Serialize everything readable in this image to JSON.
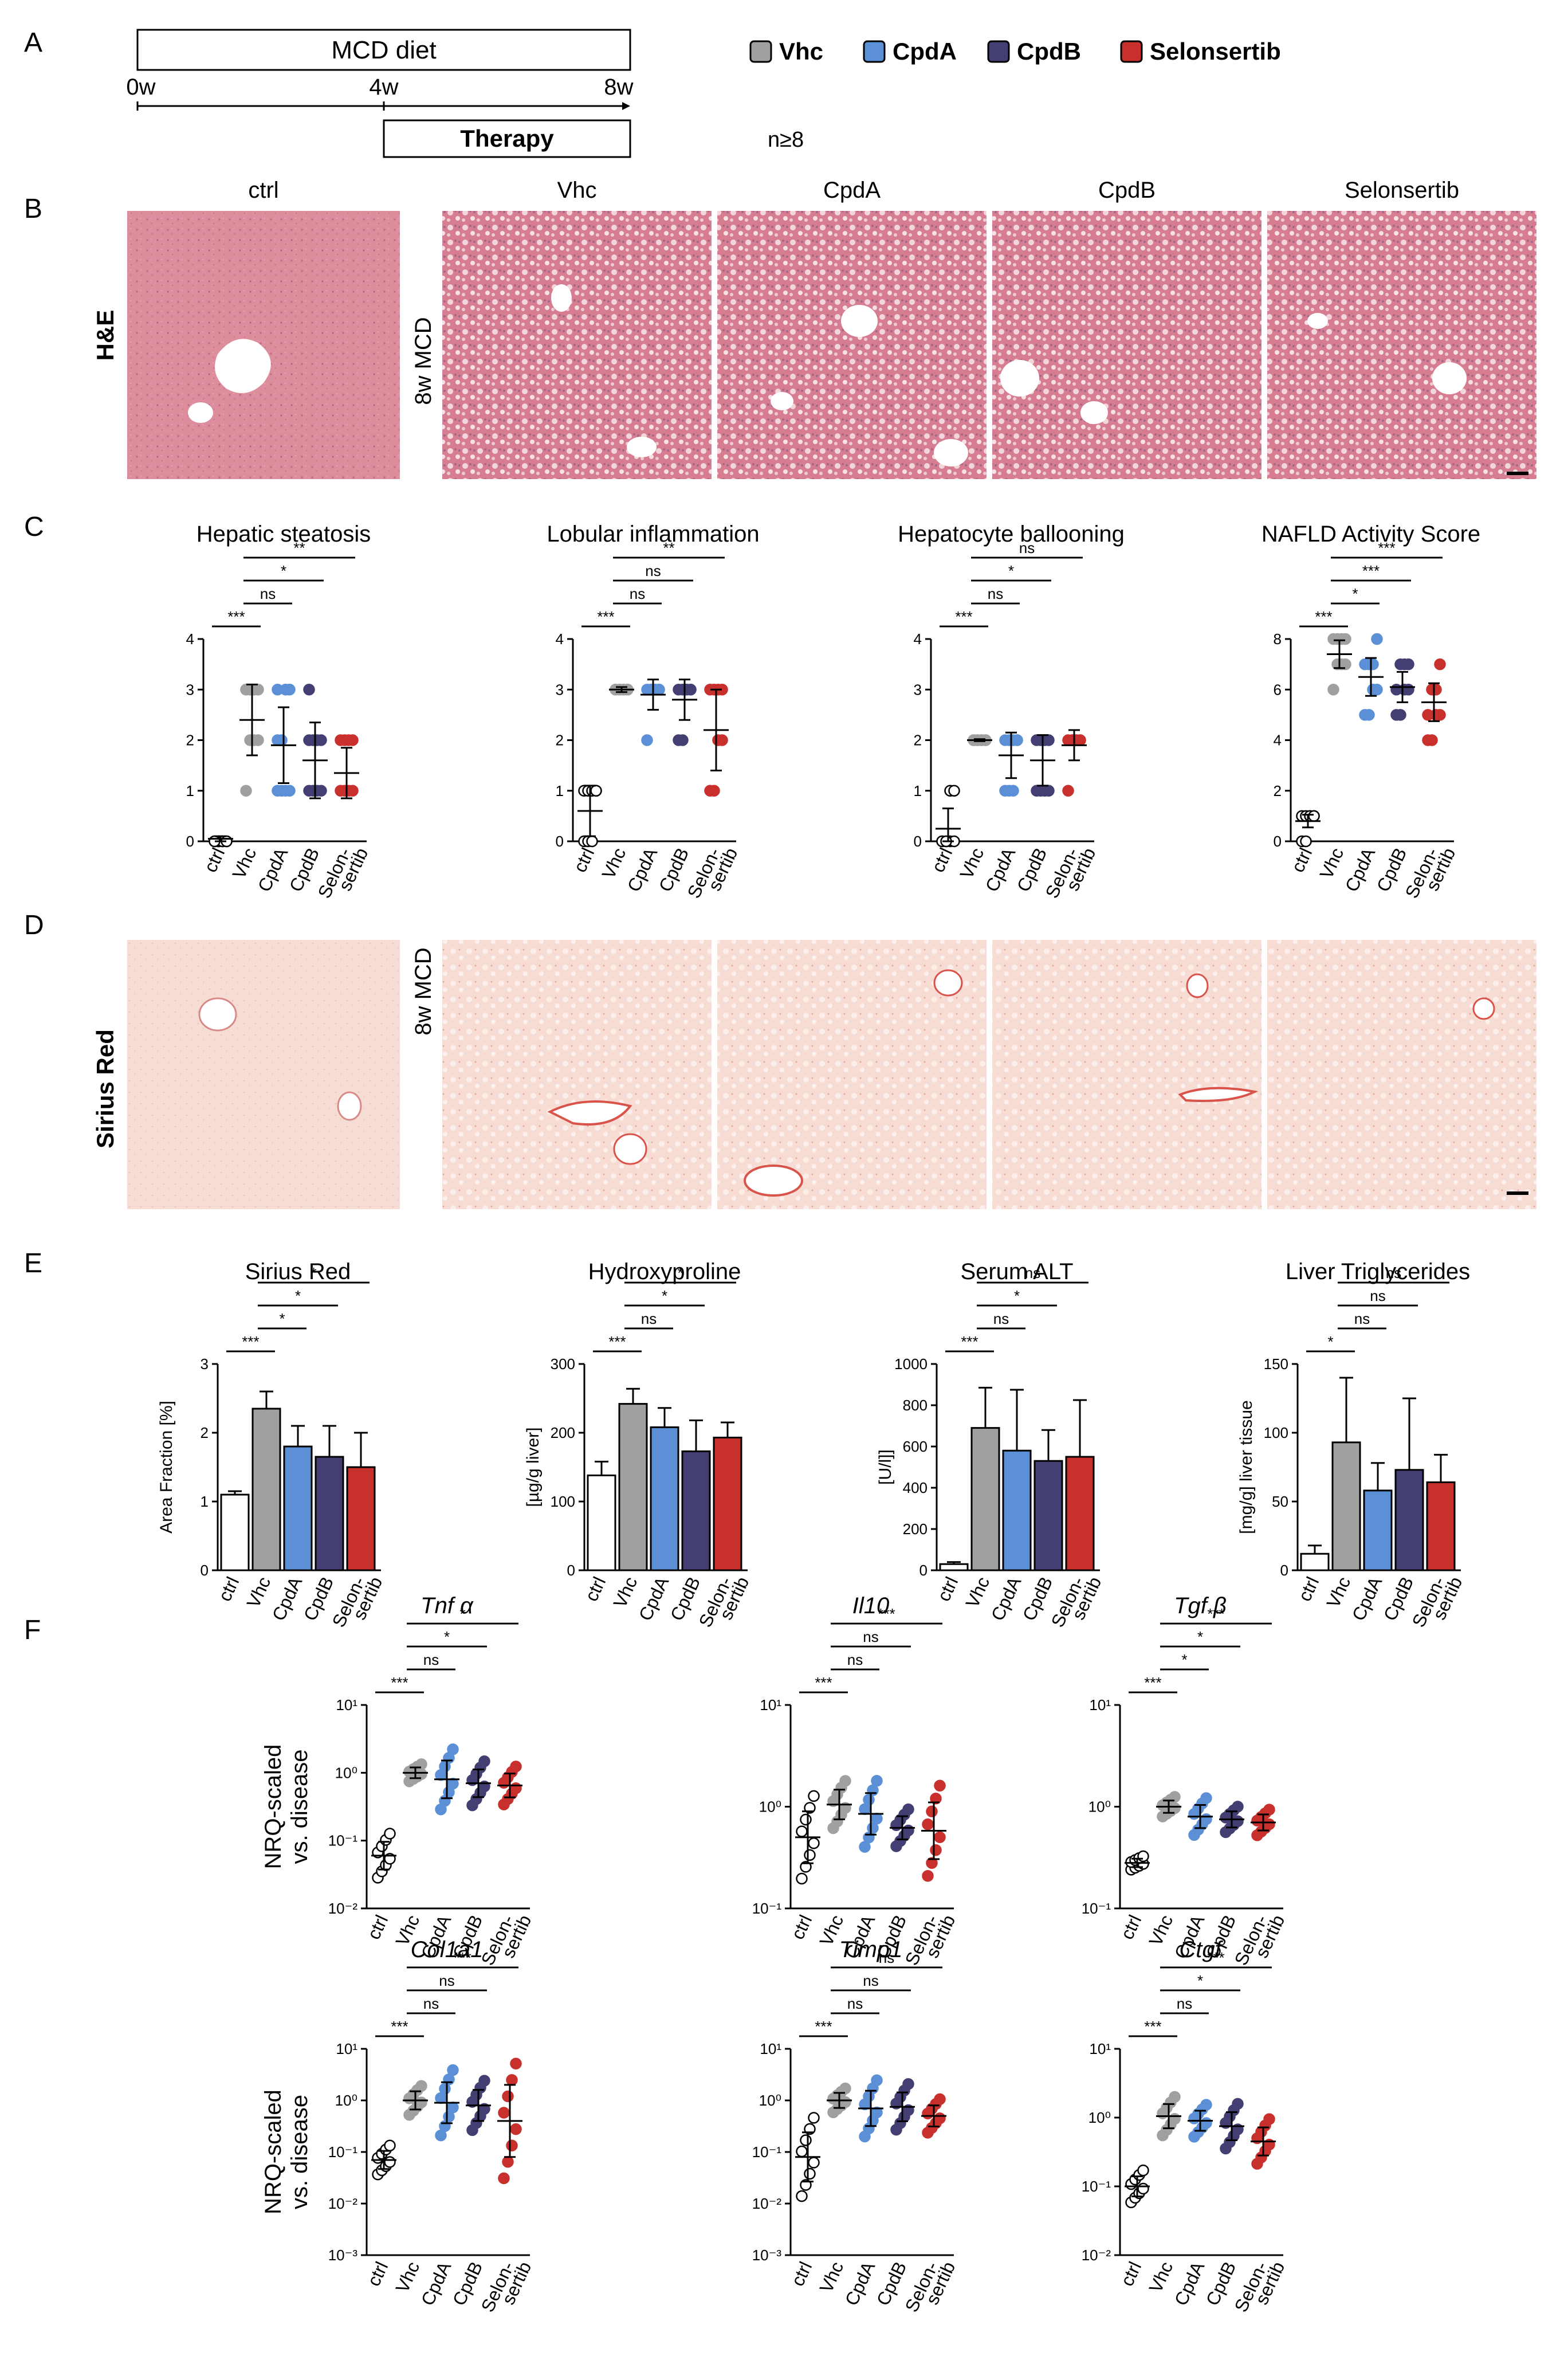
{
  "panels": {
    "A": "A",
    "B": "B",
    "C": "C",
    "D": "D",
    "E": "E",
    "F": "F"
  },
  "colors": {
    "Vhc": "#a0a0a0",
    "CpdA": "#5b8fd6",
    "CpdB": "#433f73",
    "Selonsertib": "#c8302d",
    "ctrl": "#ffffff"
  },
  "panelA": {
    "diet": "MCD diet",
    "weeks": [
      "0w",
      "4w",
      "8w"
    ],
    "therapy": "Therapy",
    "n_note": "n≥8",
    "legend": [
      "Vhc",
      "CpdA",
      "CpdB",
      "Selonsertib"
    ]
  },
  "panelB": {
    "stain": "H&E",
    "side_label": "8w MCD",
    "image_titles": [
      "ctrl",
      "Vhc",
      "CpdA",
      "CpdB",
      "Selonsertib"
    ]
  },
  "panelD": {
    "stain": "Sirius Red",
    "side_label": "8w MCD"
  },
  "group_labels": [
    "ctrl",
    "Vhc",
    "CpdA",
    "CpdB",
    "Selon-\nsertib"
  ],
  "chart_data": [
    {
      "panel": "C",
      "type": "scatter",
      "title": "Hepatic steatosis",
      "categories": [
        "ctrl",
        "Vhc",
        "CpdA",
        "CpdB",
        "Selonsertib"
      ],
      "ylim": [
        0,
        4
      ],
      "yticks": [
        0,
        1,
        2,
        3,
        4
      ],
      "mean": [
        0.05,
        2.4,
        1.9,
        1.6,
        1.35
      ],
      "sd": [
        0.05,
        0.7,
        0.75,
        0.75,
        0.5
      ],
      "points": [
        [
          0,
          0,
          0,
          0,
          0,
          0,
          0,
          0,
          0
        ],
        [
          1,
          2,
          2,
          2,
          3,
          3,
          3,
          3,
          3
        ],
        [
          1,
          1,
          1,
          1,
          2,
          2,
          3,
          3,
          3
        ],
        [
          1,
          1,
          1,
          1,
          2,
          2,
          2,
          2,
          3
        ],
        [
          1,
          1,
          1,
          1,
          2,
          2,
          2,
          2
        ]
      ],
      "comparisons": [
        {
          "label": "***",
          "from": 0,
          "to": 1
        },
        {
          "label": "ns",
          "from": 1,
          "to": 2
        },
        {
          "label": "*",
          "from": 1,
          "to": 3
        },
        {
          "label": "**",
          "from": 1,
          "to": 4
        }
      ]
    },
    {
      "panel": "C",
      "type": "scatter",
      "title": "Lobular inflammation",
      "categories": [
        "ctrl",
        "Vhc",
        "CpdA",
        "CpdB",
        "Selonsertib"
      ],
      "ylim": [
        0,
        4
      ],
      "yticks": [
        0,
        1,
        2,
        3,
        4
      ],
      "mean": [
        0.6,
        3.0,
        2.9,
        2.8,
        2.2
      ],
      "sd": [
        0.5,
        0.05,
        0.3,
        0.4,
        0.8
      ],
      "points": [
        [
          0,
          0,
          0,
          1,
          1,
          1,
          1,
          1
        ],
        [
          3,
          3,
          3,
          3,
          3,
          3,
          3,
          3
        ],
        [
          2,
          3,
          3,
          3,
          3,
          3,
          3,
          3
        ],
        [
          2,
          2,
          3,
          3,
          3,
          3,
          3,
          3
        ],
        [
          1,
          1,
          2,
          2,
          3,
          3,
          3,
          3
        ]
      ],
      "comparisons": [
        {
          "label": "***",
          "from": 0,
          "to": 1
        },
        {
          "label": "ns",
          "from": 1,
          "to": 2
        },
        {
          "label": "ns",
          "from": 1,
          "to": 3
        },
        {
          "label": "**",
          "from": 1,
          "to": 4
        }
      ]
    },
    {
      "panel": "C",
      "type": "scatter",
      "title": "Hepatocyte ballooning",
      "categories": [
        "ctrl",
        "Vhc",
        "CpdA",
        "CpdB",
        "Selonsertib"
      ],
      "ylim": [
        0,
        4
      ],
      "yticks": [
        0,
        1,
        2,
        3,
        4
      ],
      "mean": [
        0.25,
        2.0,
        1.7,
        1.6,
        1.9
      ],
      "sd": [
        0.4,
        0.02,
        0.45,
        0.5,
        0.3
      ],
      "points": [
        [
          0,
          0,
          0,
          0,
          0,
          0,
          1,
          1
        ],
        [
          2,
          2,
          2,
          2,
          2,
          2,
          2,
          2
        ],
        [
          1,
          1,
          1,
          2,
          2,
          2,
          2,
          2
        ],
        [
          1,
          1,
          1,
          1,
          2,
          2,
          2,
          2
        ],
        [
          1,
          2,
          2,
          2,
          2,
          2,
          2,
          2
        ]
      ],
      "comparisons": [
        {
          "label": "***",
          "from": 0,
          "to": 1
        },
        {
          "label": "ns",
          "from": 1,
          "to": 2
        },
        {
          "label": "*",
          "from": 1,
          "to": 3
        },
        {
          "label": "ns",
          "from": 1,
          "to": 4
        }
      ]
    },
    {
      "panel": "C",
      "type": "scatter",
      "title": "NAFLD Activity Score",
      "categories": [
        "ctrl",
        "Vhc",
        "CpdA",
        "CpdB",
        "Selonsertib"
      ],
      "ylim": [
        0,
        8
      ],
      "yticks": [
        0,
        2,
        4,
        6,
        8
      ],
      "mean": [
        0.8,
        7.4,
        6.5,
        6.1,
        5.5
      ],
      "sd": [
        0.25,
        0.55,
        0.75,
        0.6,
        0.75
      ],
      "points": [
        [
          0,
          0,
          1,
          1,
          1,
          1,
          1,
          1
        ],
        [
          6,
          7,
          7,
          7,
          8,
          8,
          8,
          8
        ],
        [
          5,
          5,
          6,
          6,
          7,
          7,
          7,
          8
        ],
        [
          5,
          5,
          6,
          6,
          6,
          7,
          7,
          7
        ],
        [
          4,
          4,
          5,
          5,
          5,
          6,
          6,
          7
        ]
      ],
      "comparisons": [
        {
          "label": "***",
          "from": 0,
          "to": 1
        },
        {
          "label": "*",
          "from": 1,
          "to": 2
        },
        {
          "label": "***",
          "from": 1,
          "to": 3
        },
        {
          "label": "***",
          "from": 1,
          "to": 4
        }
      ]
    },
    {
      "panel": "E",
      "type": "bar",
      "title": "Sirius Red",
      "ylabel": "Area Fraction [%]",
      "categories": [
        "ctrl",
        "Vhc",
        "CpdA",
        "CpdB",
        "Selonsertib"
      ],
      "ylim": [
        0,
        3
      ],
      "yticks": [
        0,
        1,
        2,
        3
      ],
      "values": [
        1.1,
        2.35,
        1.8,
        1.65,
        1.5
      ],
      "errors": [
        0.05,
        0.25,
        0.3,
        0.45,
        0.5
      ],
      "comparisons": [
        {
          "label": "***",
          "from": 0,
          "to": 1
        },
        {
          "label": "*",
          "from": 1,
          "to": 2
        },
        {
          "label": "*",
          "from": 1,
          "to": 3
        },
        {
          "label": "*",
          "from": 1,
          "to": 4
        }
      ]
    },
    {
      "panel": "E",
      "type": "bar",
      "title": "Hydroxyproline",
      "ylabel": "[µg/g liver]",
      "categories": [
        "ctrl",
        "Vhc",
        "CpdA",
        "CpdB",
        "Selonsertib"
      ],
      "ylim": [
        0,
        300
      ],
      "yticks": [
        0,
        100,
        200,
        300
      ],
      "values": [
        138,
        242,
        208,
        173,
        193
      ],
      "errors": [
        20,
        22,
        28,
        45,
        22
      ],
      "comparisons": [
        {
          "label": "***",
          "from": 0,
          "to": 1
        },
        {
          "label": "ns",
          "from": 1,
          "to": 2
        },
        {
          "label": "*",
          "from": 1,
          "to": 3
        },
        {
          "label": "*",
          "from": 1,
          "to": 4
        }
      ]
    },
    {
      "panel": "E",
      "type": "bar",
      "title": "Serum ALT",
      "ylabel": "[U/l]]",
      "categories": [
        "ctrl",
        "Vhc",
        "CpdA",
        "CpdB",
        "Selonsertib"
      ],
      "ylim": [
        0,
        1000
      ],
      "yticks": [
        0,
        200,
        400,
        600,
        800,
        1000
      ],
      "values": [
        30,
        690,
        580,
        530,
        550
      ],
      "errors": [
        10,
        195,
        295,
        150,
        275
      ],
      "comparisons": [
        {
          "label": "***",
          "from": 0,
          "to": 1
        },
        {
          "label": "ns",
          "from": 1,
          "to": 2
        },
        {
          "label": "*",
          "from": 1,
          "to": 3
        },
        {
          "label": "ns",
          "from": 1,
          "to": 4
        }
      ]
    },
    {
      "panel": "E",
      "type": "bar",
      "title": "Liver Triglycerides",
      "ylabel": "[mg/g] liver tissue",
      "categories": [
        "ctrl",
        "Vhc",
        "CpdA",
        "CpdB",
        "Selonsertib"
      ],
      "ylim": [
        0,
        150
      ],
      "yticks": [
        0,
        50,
        100,
        150
      ],
      "values": [
        12,
        93,
        58,
        73,
        64
      ],
      "errors": [
        6,
        47,
        20,
        52,
        20
      ],
      "comparisons": [
        {
          "label": "*",
          "from": 0,
          "to": 1
        },
        {
          "label": "ns",
          "from": 1,
          "to": 2
        },
        {
          "label": "ns",
          "from": 1,
          "to": 3
        },
        {
          "label": "ns",
          "from": 1,
          "to": 4
        }
      ]
    },
    {
      "panel": "F",
      "type": "scatter",
      "title": "Tnf α",
      "ylabel": "NRQ-scaled\nvs. disease",
      "log": true,
      "ylim": [
        0.01,
        10
      ],
      "yticks": [
        "10⁻²",
        "10⁻¹",
        "10⁰",
        "10¹"
      ],
      "categories": [
        "ctrl",
        "Vhc",
        "CpdA",
        "CpdB",
        "Selonsertib"
      ],
      "mean": [
        0.06,
        1.0,
        0.8,
        0.7,
        0.65
      ],
      "sd_factor": [
        1.6,
        1.2,
        1.9,
        1.6,
        1.5
      ],
      "comparisons": [
        {
          "label": "***",
          "from": 0,
          "to": 1
        },
        {
          "label": "ns",
          "from": 1,
          "to": 2
        },
        {
          "label": "*",
          "from": 1,
          "to": 3
        },
        {
          "label": "*",
          "from": 1,
          "to": 4
        }
      ]
    },
    {
      "panel": "F",
      "type": "scatter",
      "title": "Il10",
      "log": true,
      "ylim": [
        0.1,
        10
      ],
      "yticks": [
        "10⁻¹",
        "10⁰",
        "10¹"
      ],
      "categories": [
        "ctrl",
        "Vhc",
        "CpdA",
        "CpdB",
        "Selonsertib"
      ],
      "mean": [
        0.5,
        1.05,
        0.85,
        0.62,
        0.58
      ],
      "sd_factor": [
        1.8,
        1.4,
        1.6,
        1.3,
        1.9
      ],
      "comparisons": [
        {
          "label": "***",
          "from": 0,
          "to": 1
        },
        {
          "label": "ns",
          "from": 1,
          "to": 2
        },
        {
          "label": "ns",
          "from": 1,
          "to": 3
        },
        {
          "label": "***",
          "from": 1,
          "to": 4
        }
      ]
    },
    {
      "panel": "F",
      "type": "scatter",
      "title": "Tgf β",
      "log": true,
      "ylim": [
        0.1,
        10
      ],
      "yticks": [
        "10⁻¹",
        "10⁰",
        "10¹"
      ],
      "categories": [
        "ctrl",
        "Vhc",
        "CpdA",
        "CpdB",
        "Selonsertib"
      ],
      "mean": [
        0.28,
        1.0,
        0.8,
        0.75,
        0.7
      ],
      "sd_factor": [
        1.1,
        1.15,
        1.3,
        1.2,
        1.2
      ],
      "comparisons": [
        {
          "label": "***",
          "from": 0,
          "to": 1
        },
        {
          "label": "*",
          "from": 1,
          "to": 2
        },
        {
          "label": "*",
          "from": 1,
          "to": 3
        },
        {
          "label": "***",
          "from": 1,
          "to": 4
        }
      ]
    },
    {
      "panel": "F",
      "type": "scatter",
      "title": "Col1a1",
      "ylabel": "NRQ-scaled\nvs. disease",
      "log": true,
      "ylim": [
        0.001,
        10
      ],
      "yticks": [
        "10⁻³",
        "10⁻²",
        "10⁻¹",
        "10⁰",
        "10¹"
      ],
      "categories": [
        "ctrl",
        "Vhc",
        "CpdA",
        "CpdB",
        "Selonsertib"
      ],
      "mean": [
        0.07,
        1.0,
        0.9,
        0.8,
        0.4
      ],
      "sd_factor": [
        1.5,
        1.5,
        2.5,
        2.0,
        5.0
      ],
      "comparisons": [
        {
          "label": "***",
          "from": 0,
          "to": 1
        },
        {
          "label": "ns",
          "from": 1,
          "to": 2
        },
        {
          "label": "ns",
          "from": 1,
          "to": 3
        },
        {
          "label": "***",
          "from": 1,
          "to": 4
        }
      ]
    },
    {
      "panel": "F",
      "type": "scatter",
      "title": "Timp1",
      "log": true,
      "ylim": [
        0.001,
        10
      ],
      "yticks": [
        "10⁻³",
        "10⁻²",
        "10⁻¹",
        "10⁰",
        "10¹"
      ],
      "categories": [
        "ctrl",
        "Vhc",
        "CpdA",
        "CpdB",
        "Selonsertib"
      ],
      "mean": [
        0.08,
        1.0,
        0.7,
        0.75,
        0.5
      ],
      "sd_factor": [
        3.0,
        1.4,
        2.2,
        1.9,
        1.6
      ],
      "comparisons": [
        {
          "label": "***",
          "from": 0,
          "to": 1
        },
        {
          "label": "ns",
          "from": 1,
          "to": 2
        },
        {
          "label": "ns",
          "from": 1,
          "to": 3
        },
        {
          "label": "ns",
          "from": 1,
          "to": 4
        }
      ]
    },
    {
      "panel": "F",
      "type": "scatter",
      "title": "Ctgf",
      "log": true,
      "ylim": [
        0.01,
        10
      ],
      "yticks": [
        "10⁻²",
        "10⁻¹",
        "10⁰",
        "10¹"
      ],
      "categories": [
        "ctrl",
        "Vhc",
        "CpdA",
        "CpdB",
        "Selonsertib"
      ],
      "mean": [
        0.1,
        1.05,
        0.9,
        0.75,
        0.45
      ],
      "sd_factor": [
        1.4,
        1.5,
        1.4,
        1.6,
        1.6
      ],
      "comparisons": [
        {
          "label": "***",
          "from": 0,
          "to": 1
        },
        {
          "label": "ns",
          "from": 1,
          "to": 2
        },
        {
          "label": "*",
          "from": 1,
          "to": 3
        },
        {
          "label": "***",
          "from": 1,
          "to": 4
        }
      ]
    }
  ]
}
